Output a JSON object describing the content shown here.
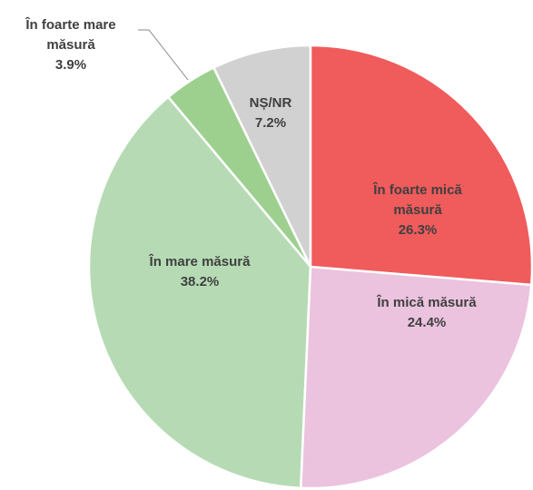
{
  "chart_data": {
    "type": "pie",
    "categories": [
      "În foarte mică măsură",
      "În mică măsură",
      "În mare măsură",
      "În foarte mare măsură",
      "NȘ/NR"
    ],
    "values": [
      26.3,
      24.4,
      38.2,
      3.9,
      7.2
    ],
    "value_labels": [
      "26.3%",
      "24.4%",
      "38.2%",
      "3.9%",
      "7.2%"
    ],
    "colors": [
      "#f05b5c",
      "#ebc3de",
      "#b6dbb4",
      "#9dd08f",
      "#d1d1d1"
    ]
  }
}
